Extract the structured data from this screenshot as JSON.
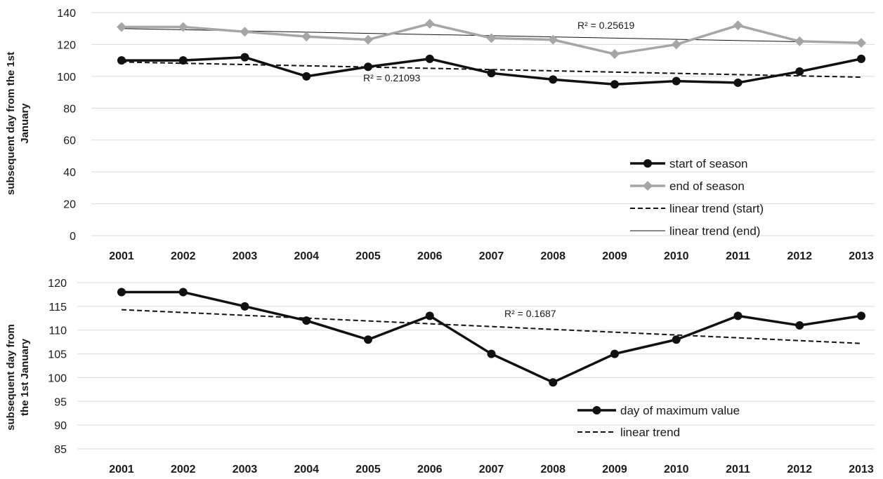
{
  "chart_data": [
    {
      "type": "line",
      "categories": [
        "2001",
        "2002",
        "2003",
        "2004",
        "2005",
        "2006",
        "2007",
        "2008",
        "2009",
        "2010",
        "2011",
        "2012",
        "2013"
      ],
      "ylabel": "subsequent day from the 1st January",
      "ylabel_lines": [
        "subsequent day from the 1st",
        "January"
      ],
      "ylim": [
        0,
        140
      ],
      "yticks": [
        0,
        20,
        40,
        60,
        80,
        100,
        120,
        140
      ],
      "grid": true,
      "legend_position": "bottom-right",
      "series": [
        {
          "name": "start of season",
          "values": [
            110,
            110,
            112,
            100,
            106,
            111,
            102,
            98,
            95,
            97,
            96,
            103,
            111
          ],
          "color": "#111111",
          "marker": "circle"
        },
        {
          "name": "end of season",
          "values": [
            131,
            131,
            128,
            125,
            123,
            133,
            124,
            123,
            114,
            120,
            132,
            122,
            121
          ],
          "color": "#a6a6a6",
          "marker": "diamond"
        },
        {
          "name": "linear trend (start)",
          "trend": [
            109,
            99.5
          ],
          "style": "dashed",
          "color": "#111111"
        },
        {
          "name": "linear trend (end)",
          "trend": [
            130,
            121
          ],
          "style": "thin",
          "color": "#111111"
        }
      ],
      "annotations": [
        {
          "text": "R² = 0.25619",
          "at_year": "2009.8",
          "at_value": 131
        },
        {
          "text": "R² = 0.21093",
          "at_year": "2005.2",
          "at_value": 97
        }
      ]
    },
    {
      "type": "line",
      "categories": [
        "2001",
        "2002",
        "2003",
        "2004",
        "2005",
        "2006",
        "2007",
        "2008",
        "2009",
        "2010",
        "2011",
        "2012",
        "2013"
      ],
      "ylabel": "subsequent day from the 1st January",
      "ylabel_lines": [
        "subsequent day from",
        "the 1st January"
      ],
      "ylim": [
        85,
        120
      ],
      "yticks": [
        85,
        90,
        95,
        100,
        105,
        110,
        115,
        120
      ],
      "grid": true,
      "legend_position": "bottom-right",
      "series": [
        {
          "name": "day of maximum value",
          "values": [
            118,
            118,
            115,
            112,
            108,
            113,
            105,
            99,
            105,
            108,
            113,
            111,
            113
          ],
          "color": "#111111",
          "marker": "circle"
        },
        {
          "name": "linear trend",
          "trend": [
            114.3,
            107.2
          ],
          "style": "dashed",
          "color": "#111111"
        }
      ],
      "annotations": [
        {
          "text": "R² = 0.1687",
          "at_year": "2008.4",
          "at_value": 111.5
        }
      ]
    }
  ]
}
